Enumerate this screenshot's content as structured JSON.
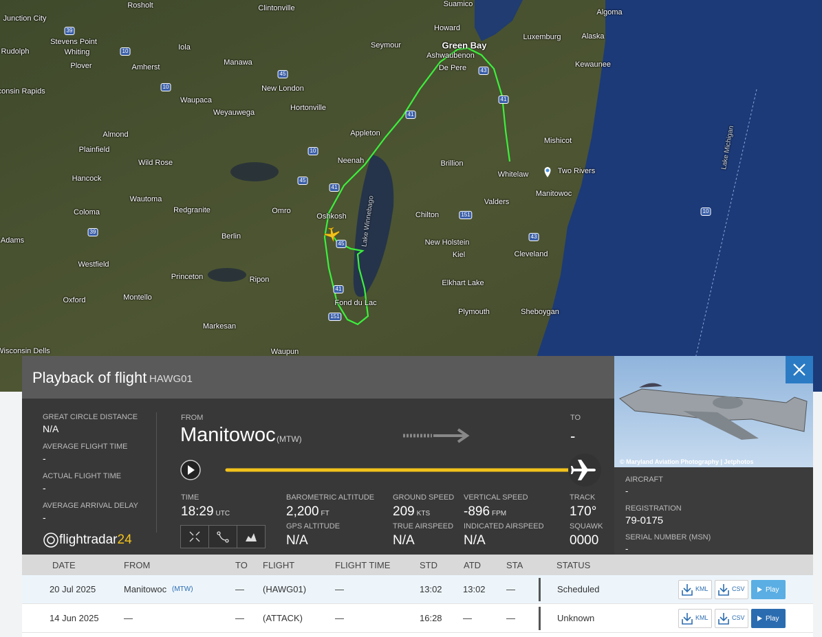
{
  "map": {
    "places": [
      "Rosholt",
      "Clintonville",
      "Suamico",
      "Algoma",
      "Junction City",
      "Howard",
      "Luxemburg",
      "Alaska",
      "Stevens Point",
      "Whiting",
      "Rudolph",
      "Iola",
      "Seymour",
      "Green Bay",
      "Ashwaubenon",
      "De Pere",
      "Kewaunee",
      "Plover",
      "Amherst",
      "Manawa",
      "Wisconsin Rapids",
      "New London",
      "Waupaca",
      "Weyauwega",
      "Hortonville",
      "Almond",
      "Appleton",
      "Mishicot",
      "Plainfield",
      "Wild Rose",
      "Neenah",
      "Brillion",
      "Whitelaw",
      "Two Rivers",
      "Hancock",
      "Wautoma",
      "Valders",
      "Manitowoc",
      "Coloma",
      "Redgranite",
      "Omro",
      "Oshkosh",
      "Chilton",
      "Adams",
      "Berlin",
      "New Holstein",
      "Kiel",
      "Cleveland",
      "Westfield",
      "Princeton",
      "Ripon",
      "Elkhart Lake",
      "Oxford",
      "Montello",
      "Fond du Lac",
      "Plymouth",
      "Sheboygan",
      "Markesan",
      "Wisconsin Dells",
      "Waupun"
    ],
    "water": [
      "Lake Winnebago",
      "Lake Michigan"
    ],
    "roads": [
      "39",
      "10",
      "45",
      "10",
      "41",
      "43",
      "41",
      "10",
      "45",
      "41",
      "151",
      "39",
      "45",
      "41",
      "151",
      "43",
      "10"
    ]
  },
  "panel": {
    "title": "Playback of flight",
    "flight": "HAWG01",
    "stats": [
      {
        "label": "GREAT CIRCLE DISTANCE",
        "value": "N/A"
      },
      {
        "label": "AVERAGE FLIGHT TIME",
        "value": "-"
      },
      {
        "label": "ACTUAL FLIGHT TIME",
        "value": "-"
      },
      {
        "label": "AVERAGE ARRIVAL DELAY",
        "value": "-"
      }
    ],
    "from_label": "FROM",
    "from": "Manitowoc",
    "from_code": "(MTW)",
    "to_label": "TO",
    "to": "-",
    "metrics": [
      {
        "label": "TIME",
        "value": "18:29",
        "unit": "UTC"
      },
      {
        "label": "BAROMETRIC ALTITUDE",
        "value": "2,200",
        "unit": "FT"
      },
      {
        "label": "GROUND SPEED",
        "value": "209",
        "unit": "KTS"
      },
      {
        "label": "VERTICAL SPEED",
        "value": "-896",
        "unit": "FPM"
      },
      {
        "label": "TRACK",
        "value": "170°"
      },
      {
        "label": "GPS ALTITUDE",
        "value": "N/A"
      },
      {
        "label": "TRUE AIRSPEED",
        "value": "N/A"
      },
      {
        "label": "INDICATED AIRSPEED",
        "value": "N/A"
      },
      {
        "label": "SQUAWK",
        "value": "0000"
      }
    ],
    "logo": {
      "text": "flightradar",
      "number": "24"
    }
  },
  "aircraft": {
    "photo_credit": "© Maryland Aviation Photography | Jetphotos",
    "fields": [
      {
        "label": "AIRCRAFT",
        "value": "-"
      },
      {
        "label": "REGISTRATION",
        "value": "79-0175"
      },
      {
        "label": "SERIAL NUMBER (MSN)",
        "value": "-"
      }
    ]
  },
  "table": {
    "columns": [
      "DATE",
      "FROM",
      "TO",
      "FLIGHT",
      "FLIGHT TIME",
      "STD",
      "ATD",
      "STA",
      "STATUS"
    ],
    "rows": [
      {
        "date": "20 Jul 2025",
        "from": "Manitowoc",
        "from_code": "(MTW)",
        "to": "—",
        "flight": "(HAWG01)",
        "flight_time": "—",
        "std": "13:02",
        "atd": "13:02",
        "sta": "—",
        "status": "Scheduled"
      },
      {
        "date": "14 Jun 2025",
        "from": "—",
        "from_code": "",
        "to": "—",
        "flight": "(ATTACK)",
        "flight_time": "—",
        "std": "16:28",
        "atd": "—",
        "sta": "—",
        "status": "Unknown"
      }
    ],
    "buttons": {
      "kml": "KML",
      "csv": "CSV",
      "play": "Play"
    }
  }
}
